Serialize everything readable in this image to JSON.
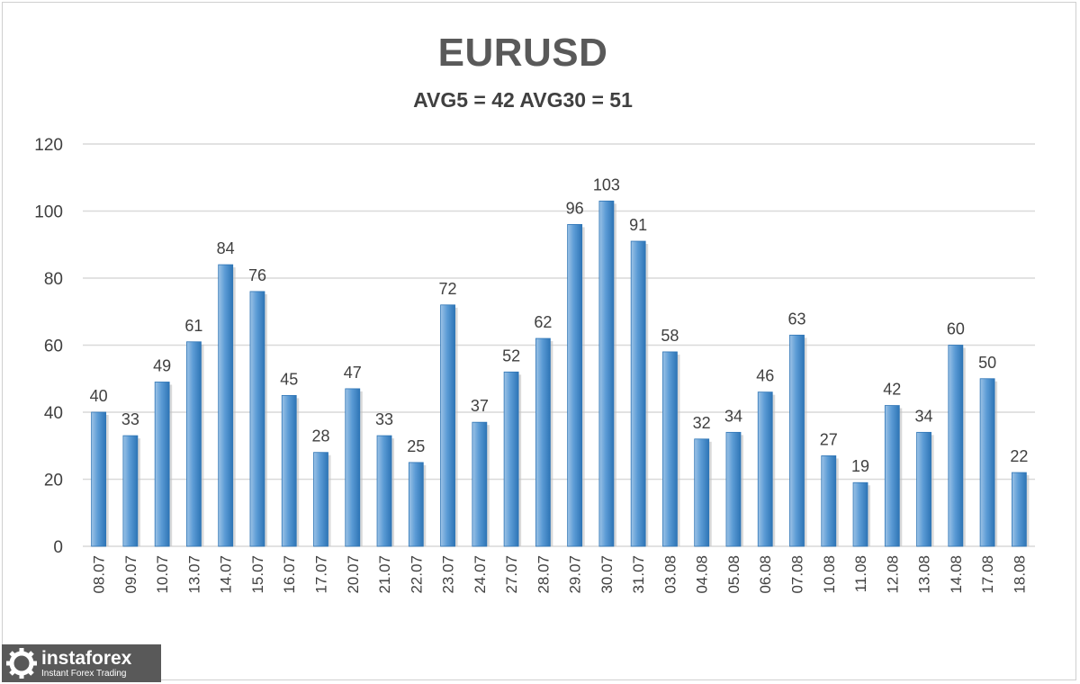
{
  "chart_data": {
    "type": "bar",
    "title": "EURUSD",
    "subtitle": "AVG5 = 42 AVG30 = 51",
    "xlabel": "",
    "ylabel": "",
    "ylim": [
      0,
      120
    ],
    "yticks": [
      0,
      20,
      40,
      60,
      80,
      100,
      120
    ],
    "grid": true,
    "legend": "none",
    "categories": [
      "08.07",
      "09.07",
      "10.07",
      "13.07",
      "14.07",
      "15.07",
      "16.07",
      "17.07",
      "20.07",
      "21.07",
      "22.07",
      "23.07",
      "24.07",
      "27.07",
      "28.07",
      "29.07",
      "30.07",
      "31.07",
      "03.08",
      "04.08",
      "05.08",
      "06.08",
      "07.08",
      "10.08",
      "11.08",
      "12.08",
      "13.08",
      "14.08",
      "17.08",
      "18.08"
    ],
    "values": [
      40,
      33,
      49,
      61,
      84,
      76,
      45,
      28,
      47,
      33,
      25,
      72,
      37,
      52,
      62,
      96,
      103,
      91,
      58,
      32,
      34,
      46,
      63,
      27,
      19,
      42,
      34,
      60,
      50,
      22
    ],
    "colors": {
      "bar": "#5b9bd5",
      "bar_dark": "#2e75b6",
      "bar_light": "#9dc3e6",
      "grid": "#d9d9d9",
      "text": "#404040"
    }
  },
  "watermark": {
    "name": "instaforex",
    "tagline": "Instant Forex Trading"
  }
}
